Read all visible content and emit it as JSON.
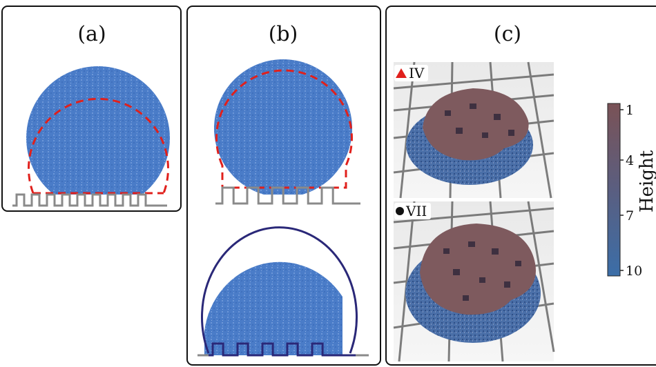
{
  "panels": {
    "a": {
      "label": "(a)"
    },
    "b": {
      "label": "(b)"
    },
    "c": {
      "label": "(c)"
    }
  },
  "insets": [
    {
      "marker": "triangle",
      "marker_color": "#e0201c",
      "label": "IV"
    },
    {
      "marker": "circle",
      "marker_color": "#111111",
      "label": "VII"
    }
  ],
  "colorbar": {
    "title": "Height",
    "ticks": [
      "1",
      "4",
      "7",
      "10"
    ],
    "color_top": "#7a5256",
    "color_bottom": "#3b6ea8"
  },
  "colors": {
    "droplet": "#4a7cc8",
    "dashed_fit": "#e0201c",
    "solid_fit": "#2a2878",
    "substrate": "#8a8a8a",
    "droplet_top": "#7e5a5e"
  }
}
